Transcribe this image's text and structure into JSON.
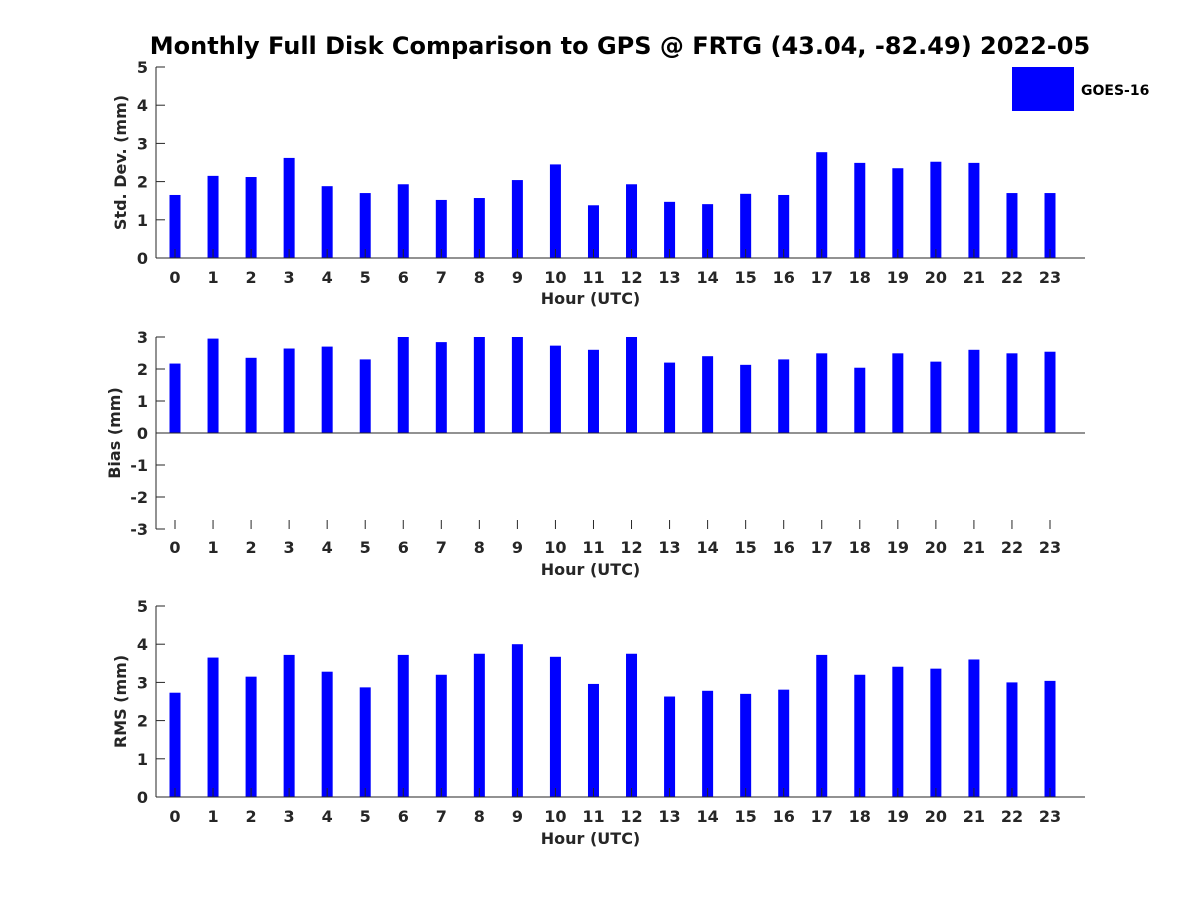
{
  "title": "Monthly Full Disk Comparison to GPS @ FRTG (43.04, -82.49) 2022-05",
  "legend": {
    "label": "GOES-16",
    "color": "#0000ff",
    "placement": "top-right"
  },
  "chart_data": [
    {
      "type": "bar",
      "x": [
        0,
        1,
        2,
        3,
        4,
        5,
        6,
        7,
        8,
        9,
        10,
        11,
        12,
        13,
        14,
        15,
        16,
        17,
        18,
        19,
        20,
        21,
        22,
        23
      ],
      "xlabel": "Hour (UTC)",
      "ylabel": "Std. Dev. (mm)",
      "ylim": [
        0,
        5
      ],
      "yticks": [
        0,
        1,
        2,
        3,
        4,
        5
      ],
      "grid": false,
      "series": [
        {
          "name": "GOES-16",
          "color": "#0000ff",
          "values": [
            1.65,
            2.15,
            2.12,
            2.62,
            1.88,
            1.7,
            1.93,
            1.52,
            1.57,
            2.04,
            2.45,
            1.38,
            1.93,
            1.47,
            1.41,
            1.68,
            1.65,
            2.77,
            2.49,
            2.35,
            2.52,
            2.49,
            1.7,
            1.7
          ]
        }
      ]
    },
    {
      "type": "bar",
      "x": [
        0,
        1,
        2,
        3,
        4,
        5,
        6,
        7,
        8,
        9,
        10,
        11,
        12,
        13,
        14,
        15,
        16,
        17,
        18,
        19,
        20,
        21,
        22,
        23
      ],
      "xlabel": "Hour (UTC)",
      "ylabel": "Bias (mm)",
      "ylim": [
        -3,
        3
      ],
      "yticks": [
        -3,
        -2,
        -1,
        0,
        1,
        2,
        3
      ],
      "grid": false,
      "series": [
        {
          "name": "GOES-16",
          "color": "#0000ff",
          "values": [
            2.17,
            2.95,
            2.35,
            2.64,
            2.7,
            2.3,
            3.0,
            2.84,
            3.0,
            3.0,
            2.73,
            2.6,
            3.0,
            2.2,
            2.4,
            2.13,
            2.3,
            2.49,
            2.04,
            2.49,
            2.23,
            2.6,
            2.49,
            2.54
          ]
        }
      ]
    },
    {
      "type": "bar",
      "x": [
        0,
        1,
        2,
        3,
        4,
        5,
        6,
        7,
        8,
        9,
        10,
        11,
        12,
        13,
        14,
        15,
        16,
        17,
        18,
        19,
        20,
        21,
        22,
        23
      ],
      "xlabel": "Hour (UTC)",
      "ylabel": "RMS (mm)",
      "ylim": [
        0,
        5
      ],
      "yticks": [
        0,
        1,
        2,
        3,
        4,
        5
      ],
      "grid": false,
      "series": [
        {
          "name": "GOES-16",
          "color": "#0000ff",
          "values": [
            2.73,
            3.65,
            3.15,
            3.72,
            3.28,
            2.87,
            3.72,
            3.2,
            3.75,
            4.0,
            3.67,
            2.96,
            3.75,
            2.63,
            2.78,
            2.7,
            2.81,
            3.72,
            3.2,
            3.41,
            3.36,
            3.6,
            3.0,
            3.04
          ]
        }
      ]
    }
  ]
}
